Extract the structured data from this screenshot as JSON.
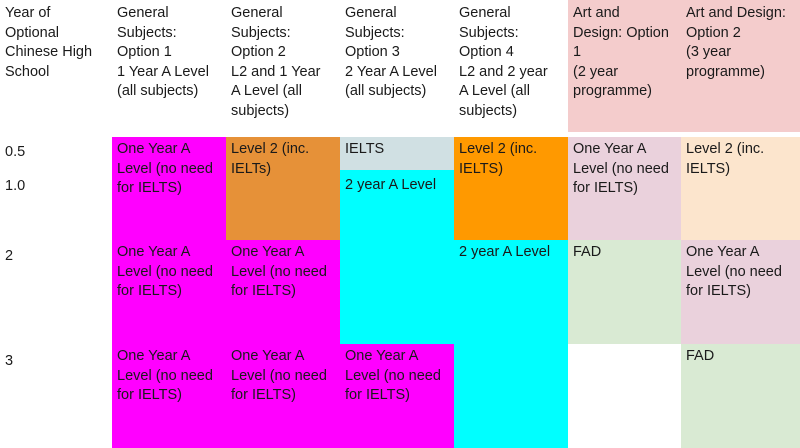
{
  "headers": {
    "year": "Year of\nOptional\nChinese High\nSchool",
    "col1": "General\nSubjects:\nOption 1\n1 Year A Level\n(all subjects)",
    "col2": "General\nSubjects:\nOption 2\nL2 and 1 Year\nA Level (all\nsubjects)",
    "col3": "General\nSubjects:\nOption 3\n2 Year A Level\n(all subjects)",
    "col4": "General\nSubjects:\nOption 4\nL2 and 2 year\nA Level (all\nsubjects)",
    "col5": "Art and\nDesign: Option\n1\n(2 year\nprogramme)",
    "col6": "Art and Design:\nOption 2\n(3 year\nprogramme)"
  },
  "years": {
    "y05": "0.5",
    "y10": "1.0",
    "y2": "2",
    "y3": "3"
  },
  "cells": {
    "c1_r1": "One Year A\nLevel (no need\nfor IELTS)",
    "c1_r2": "One Year A\nLevel (no need\nfor IELTS)",
    "c1_r3": "One Year A\nLevel (no need\nfor IELTS)",
    "c2_r1": "Level 2 (inc.\nIELTs)",
    "c2_r2": "One Year A\nLevel (no need\nfor IELTS)",
    "c2_r3": "One Year A\nLevel (no need\nfor IELTS)",
    "c3_ielts": "IELTS",
    "c3_2yr": "2 year A Level",
    "c3_r3": "One Year A\nLevel (no need\nfor IELTS)",
    "c4_r1": "Level 2 (inc.\nIELTS)",
    "c4_2yr": "2 year A Level",
    "c5_r1": "One Year A\nLevel (no need\nfor IELTS)",
    "c5_fad": "FAD",
    "c6_r1": "Level 2 (inc.\nIELTS)",
    "c6_r2": "One Year A\nLevel (no need\nfor IELTS)",
    "c6_fad": "FAD"
  },
  "colors": {
    "magenta": "#ff00ff",
    "orange_dark": "#e69138",
    "grey_blue": "#d0e0e3",
    "cyan": "#00ffff",
    "orange": "#ff9900",
    "pink_light": "#ead1dc",
    "pink_header": "#f4cccc",
    "peach": "#fce5cd",
    "green_light": "#d9ead3",
    "white": "#ffffff"
  }
}
